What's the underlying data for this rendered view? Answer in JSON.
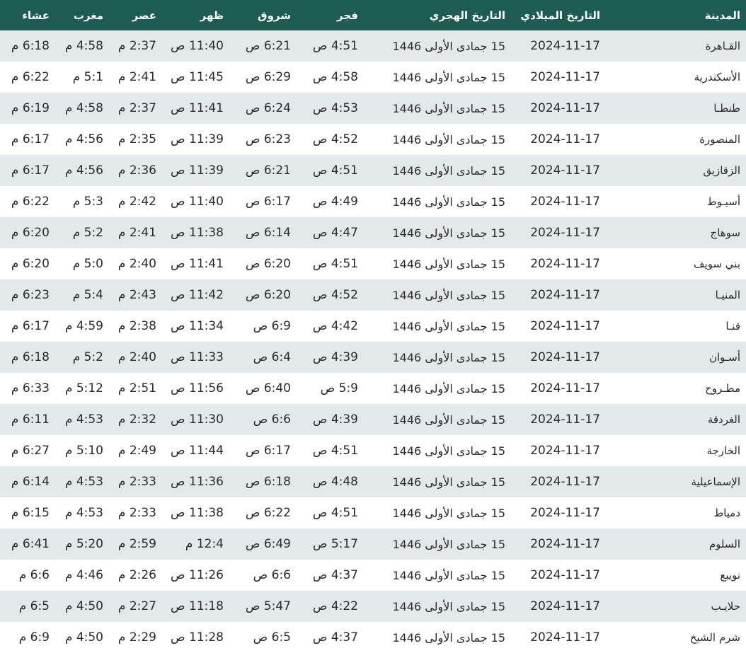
{
  "colors": {
    "header_bg": "#1d5c52",
    "row_alt_bg": "#e3e9eb",
    "row_bg": "#ffffff"
  },
  "headers": [
    "المدينة",
    "التاريخ الميلادي",
    "التاريخ الهجري",
    "فجر",
    "شروق",
    "ظهر",
    "عصر",
    "مغرب",
    "عشاء"
  ],
  "rows": [
    [
      "القـاهرة",
      "2024-11-17",
      "15 جمادى الأولى 1446",
      "4:51 ص",
      "6:21 ص",
      "11:40 ص",
      "2:37 م",
      "4:58 م",
      "6:18 م"
    ],
    [
      "الأسكندرية",
      "2024-11-17",
      "15 جمادى الأولى 1446",
      "4:58 ص",
      "6:29 ص",
      "11:45 ص",
      "2:41 م",
      "5:1 م",
      "6:22 م"
    ],
    [
      "طنطـا",
      "2024-11-17",
      "15 جمادى الأولى 1446",
      "4:53 ص",
      "6:24 ص",
      "11:41 ص",
      "2:37 م",
      "4:58 م",
      "6:19 م"
    ],
    [
      "المنصورة",
      "2024-11-17",
      "15 جمادى الأولى 1446",
      "4:52 ص",
      "6:23 ص",
      "11:39 ص",
      "2:35 م",
      "4:56 م",
      "6:17 م"
    ],
    [
      "الزقازيق",
      "2024-11-17",
      "15 جمادى الأولى 1446",
      "4:51 ص",
      "6:21 ص",
      "11:39 ص",
      "2:36 م",
      "4:56 م",
      "6:17 م"
    ],
    [
      "أسيـوط",
      "2024-11-17",
      "15 جمادى الأولى 1446",
      "4:49 ص",
      "6:17 ص",
      "11:40 ص",
      "2:42 م",
      "5:3 م",
      "6:22 م"
    ],
    [
      "سوهاج",
      "2024-11-17",
      "15 جمادى الأولى 1446",
      "4:47 ص",
      "6:14 ص",
      "11:38 ص",
      "2:41 م",
      "5:2 م",
      "6:20 م"
    ],
    [
      "بني سويف",
      "2024-11-17",
      "15 جمادى الأولى 1446",
      "4:51 ص",
      "6:20 ص",
      "11:41 ص",
      "2:40 م",
      "5:0 م",
      "6:20 م"
    ],
    [
      "المنيـا",
      "2024-11-17",
      "15 جمادى الأولى 1446",
      "4:52 ص",
      "6:20 ص",
      "11:42 ص",
      "2:43 م",
      "5:4 م",
      "6:23 م"
    ],
    [
      "قنـا",
      "2024-11-17",
      "15 جمادى الأولى 1446",
      "4:42 ص",
      "6:9 ص",
      "11:34 ص",
      "2:38 م",
      "4:59 م",
      "6:17 م"
    ],
    [
      "أسـوان",
      "2024-11-17",
      "15 جمادى الأولى 1446",
      "4:39 ص",
      "6:4 ص",
      "11:33 ص",
      "2:40 م",
      "5:2 م",
      "6:18 م"
    ],
    [
      "مطـروح",
      "2024-11-17",
      "15 جمادى الأولى 1446",
      "5:9 ص",
      "6:40 ص",
      "11:56 ص",
      "2:51 م",
      "5:12 م",
      "6:33 م"
    ],
    [
      "الغردقة",
      "2024-11-17",
      "15 جمادى الأولى 1446",
      "4:39 ص",
      "6:6 ص",
      "11:30 ص",
      "2:32 م",
      "4:53 م",
      "6:11 م"
    ],
    [
      "الخارجة",
      "2024-11-17",
      "15 جمادى الأولى 1446",
      "4:51 ص",
      "6:17 ص",
      "11:44 ص",
      "2:49 م",
      "5:10 م",
      "6:27 م"
    ],
    [
      "الإسماعيلية",
      "2024-11-17",
      "15 جمادى الأولى 1446",
      "4:48 ص",
      "6:18 ص",
      "11:36 ص",
      "2:33 م",
      "4:53 م",
      "6:14 م"
    ],
    [
      "دمياط",
      "2024-11-17",
      "15 جمادى الأولى 1446",
      "4:51 ص",
      "6:22 ص",
      "11:38 ص",
      "2:33 م",
      "4:53 م",
      "6:15 م"
    ],
    [
      "السلوم",
      "2024-11-17",
      "15 جمادى الأولى 1446",
      "5:17 ص",
      "6:49 ص",
      "12:4 م",
      "2:59 م",
      "5:20 م",
      "6:41 م"
    ],
    [
      "نويبع",
      "2024-11-17",
      "15 جمادى الأولى 1446",
      "4:37 ص",
      "6:6 ص",
      "11:26 ص",
      "2:26 م",
      "4:46 م",
      "6:6 م"
    ],
    [
      "حلايـب",
      "2024-11-17",
      "15 جمادى الأولى 1446",
      "4:22 ص",
      "5:47 ص",
      "11:18 ص",
      "2:27 م",
      "4:50 م",
      "6:5 م"
    ],
    [
      "شرم الشيخ",
      "2024-11-17",
      "15 جمادى الأولى 1446",
      "4:37 ص",
      "6:5 ص",
      "11:28 ص",
      "2:29 م",
      "4:50 م",
      "6:9 م"
    ]
  ]
}
